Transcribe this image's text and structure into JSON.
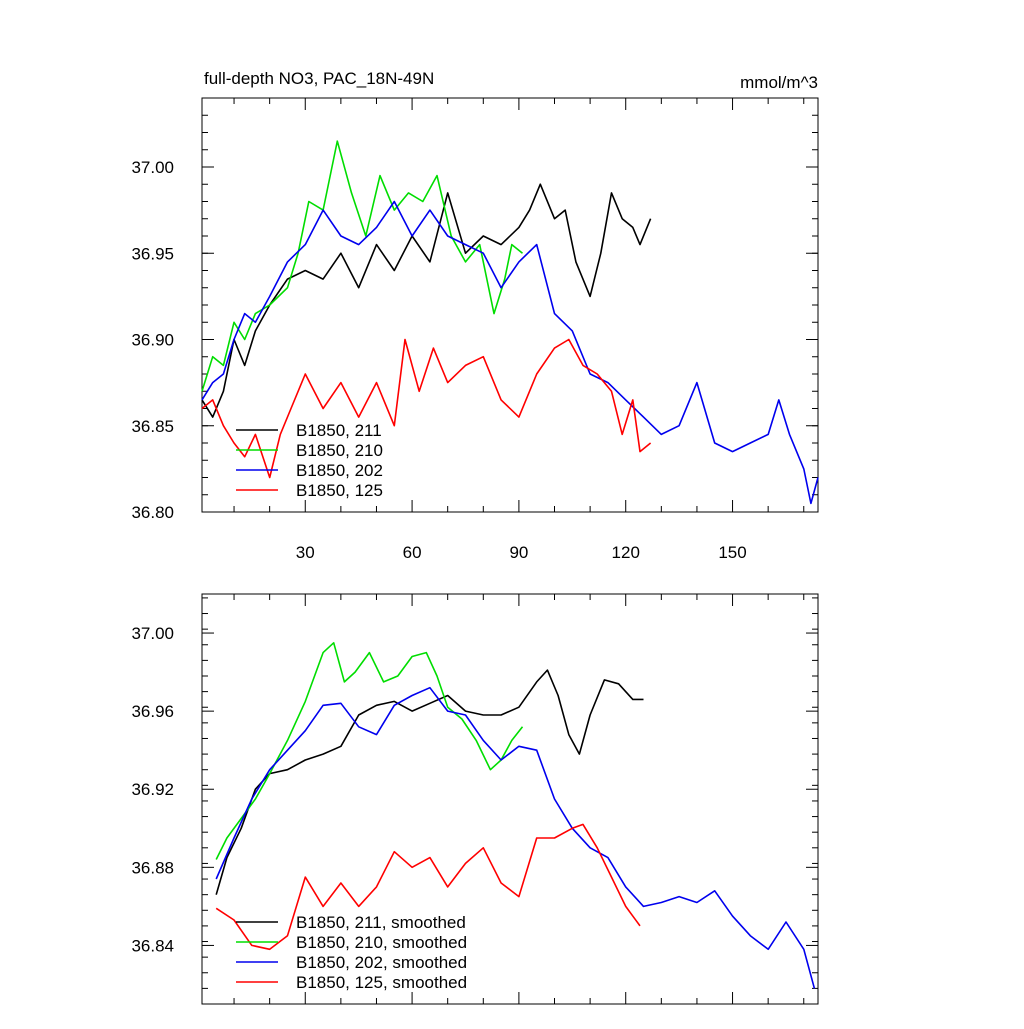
{
  "chart_data": [
    {
      "type": "line",
      "title": "full-depth NO3, PAC_18N-49N",
      "units": "mmol/m^3",
      "xlim": [
        1,
        174
      ],
      "ylim": [
        36.8,
        37.04
      ],
      "xticks": [
        30,
        60,
        90,
        120,
        150
      ],
      "xtick_labels": [
        "30",
        "60",
        "90",
        "120",
        "150"
      ],
      "yticks": [
        36.8,
        36.85,
        36.9,
        36.95,
        37.0
      ],
      "ytick_labels": [
        "36.80",
        "36.85",
        "36.90",
        "36.95",
        "37.00"
      ],
      "legend_position": "bottom-left",
      "series": [
        {
          "name": "B1850, 211",
          "color": "#000000",
          "x": [
            1,
            4,
            7,
            10,
            13,
            16,
            20,
            25,
            30,
            35,
            40,
            45,
            50,
            55,
            60,
            65,
            70,
            75,
            80,
            85,
            90,
            93,
            96,
            100,
            103,
            106,
            110,
            113,
            116,
            119,
            122,
            124,
            127
          ],
          "y": [
            36.865,
            36.855,
            36.87,
            36.9,
            36.885,
            36.905,
            36.92,
            36.935,
            36.94,
            36.935,
            36.95,
            36.93,
            36.955,
            36.94,
            36.96,
            36.945,
            36.985,
            36.95,
            36.96,
            36.955,
            36.965,
            36.975,
            36.99,
            36.97,
            36.975,
            36.945,
            36.925,
            36.95,
            36.985,
            36.97,
            36.965,
            36.955,
            36.97
          ]
        },
        {
          "name": "B1850, 210",
          "color": "#00dd00",
          "x": [
            1,
            4,
            7,
            10,
            13,
            16,
            20,
            25,
            28,
            31,
            35,
            39,
            43,
            47,
            51,
            55,
            59,
            63,
            67,
            71,
            75,
            79,
            83,
            86,
            88,
            91
          ],
          "y": [
            36.87,
            36.89,
            36.885,
            36.91,
            36.9,
            36.915,
            36.92,
            36.93,
            36.95,
            36.98,
            36.975,
            37.015,
            36.985,
            36.96,
            36.995,
            36.975,
            36.985,
            36.98,
            36.995,
            36.96,
            36.945,
            36.955,
            36.915,
            36.935,
            36.955,
            36.95
          ]
        },
        {
          "name": "B1850, 202",
          "color": "#0000ee",
          "x": [
            1,
            4,
            7,
            10,
            13,
            16,
            20,
            25,
            30,
            35,
            40,
            45,
            50,
            55,
            60,
            65,
            70,
            75,
            80,
            85,
            90,
            95,
            100,
            105,
            110,
            115,
            120,
            125,
            130,
            135,
            140,
            145,
            150,
            155,
            160,
            163,
            166,
            170,
            172,
            174
          ],
          "y": [
            36.865,
            36.875,
            36.88,
            36.9,
            36.915,
            36.91,
            36.925,
            36.945,
            36.955,
            36.975,
            36.96,
            36.955,
            36.965,
            36.98,
            36.96,
            36.975,
            36.96,
            36.955,
            36.95,
            36.93,
            36.945,
            36.955,
            36.915,
            36.905,
            36.88,
            36.875,
            36.865,
            36.855,
            36.845,
            36.85,
            36.875,
            36.84,
            36.835,
            36.84,
            36.845,
            36.865,
            36.845,
            36.825,
            36.805,
            36.82
          ]
        },
        {
          "name": "B1850, 125",
          "color": "#ff0000",
          "x": [
            1,
            4,
            7,
            10,
            13,
            16,
            20,
            23,
            26,
            30,
            35,
            40,
            45,
            50,
            55,
            58,
            62,
            66,
            70,
            75,
            80,
            85,
            90,
            95,
            100,
            104,
            108,
            112,
            116,
            119,
            122,
            124,
            127
          ],
          "y": [
            36.86,
            36.865,
            36.85,
            36.84,
            36.832,
            36.845,
            36.82,
            36.845,
            36.86,
            36.88,
            36.86,
            36.875,
            36.855,
            36.875,
            36.85,
            36.9,
            36.87,
            36.895,
            36.875,
            36.885,
            36.89,
            36.865,
            36.855,
            36.88,
            36.895,
            36.9,
            36.885,
            36.88,
            36.87,
            36.845,
            36.865,
            36.835,
            36.84
          ]
        }
      ]
    },
    {
      "type": "line",
      "title": "",
      "xlim": [
        1,
        174
      ],
      "ylim": [
        36.81,
        37.02
      ],
      "yticks": [
        36.84,
        36.88,
        36.92,
        36.96,
        37.0
      ],
      "ytick_labels": [
        "36.84",
        "36.88",
        "36.92",
        "36.96",
        "37.00"
      ],
      "xticks": [
        30,
        60,
        90,
        120,
        150
      ],
      "legend_position": "bottom-left",
      "series": [
        {
          "name": "B1850, 211, smoothed",
          "color": "#000000",
          "x": [
            5,
            8,
            12,
            16,
            20,
            25,
            30,
            35,
            40,
            45,
            50,
            55,
            60,
            65,
            70,
            75,
            80,
            85,
            90,
            95,
            98,
            101,
            104,
            107,
            110,
            114,
            118,
            122,
            125
          ],
          "y": [
            36.866,
            36.885,
            36.9,
            36.92,
            36.928,
            36.93,
            36.935,
            36.938,
            36.942,
            36.958,
            36.963,
            36.965,
            36.96,
            36.964,
            36.968,
            36.96,
            36.958,
            36.958,
            36.962,
            36.975,
            36.981,
            36.968,
            36.948,
            36.938,
            36.958,
            36.976,
            36.974,
            36.966,
            36.966
          ]
        },
        {
          "name": "B1850, 210, smoothed",
          "color": "#00dd00",
          "x": [
            5,
            8,
            12,
            16,
            20,
            25,
            30,
            35,
            38,
            41,
            44,
            48,
            52,
            56,
            60,
            64,
            67,
            70,
            74,
            78,
            82,
            85,
            88,
            91
          ],
          "y": [
            36.884,
            36.895,
            36.905,
            36.915,
            36.928,
            36.945,
            36.965,
            36.99,
            36.995,
            36.975,
            36.98,
            36.99,
            36.975,
            36.978,
            36.988,
            36.99,
            36.978,
            36.962,
            36.956,
            36.945,
            36.93,
            36.935,
            36.945,
            36.952
          ]
        },
        {
          "name": "B1850, 202, smoothed",
          "color": "#0000ee",
          "x": [
            5,
            10,
            15,
            20,
            25,
            30,
            35,
            40,
            45,
            50,
            55,
            60,
            65,
            70,
            75,
            80,
            85,
            90,
            95,
            100,
            105,
            110,
            115,
            120,
            125,
            130,
            135,
            140,
            145,
            150,
            155,
            160,
            165,
            170,
            173
          ],
          "y": [
            36.874,
            36.895,
            36.915,
            36.93,
            36.94,
            36.95,
            36.963,
            36.964,
            36.952,
            36.948,
            36.963,
            36.968,
            36.972,
            36.96,
            36.958,
            36.945,
            36.935,
            36.942,
            36.94,
            36.915,
            36.9,
            36.89,
            36.885,
            36.87,
            36.86,
            36.862,
            36.865,
            36.862,
            36.868,
            36.855,
            36.845,
            36.838,
            36.852,
            36.838,
            36.818
          ]
        },
        {
          "name": "B1850, 125, smoothed",
          "color": "#ff0000",
          "x": [
            5,
            10,
            15,
            20,
            25,
            30,
            35,
            40,
            45,
            50,
            55,
            60,
            65,
            70,
            75,
            80,
            85,
            90,
            95,
            100,
            105,
            108,
            112,
            116,
            120,
            124
          ],
          "y": [
            36.859,
            36.853,
            36.84,
            36.838,
            36.845,
            36.875,
            36.86,
            36.872,
            36.86,
            36.87,
            36.888,
            36.88,
            36.885,
            36.87,
            36.882,
            36.89,
            36.872,
            36.865,
            36.895,
            36.895,
            36.9,
            36.902,
            36.89,
            36.875,
            36.86,
            36.85
          ]
        }
      ]
    }
  ]
}
